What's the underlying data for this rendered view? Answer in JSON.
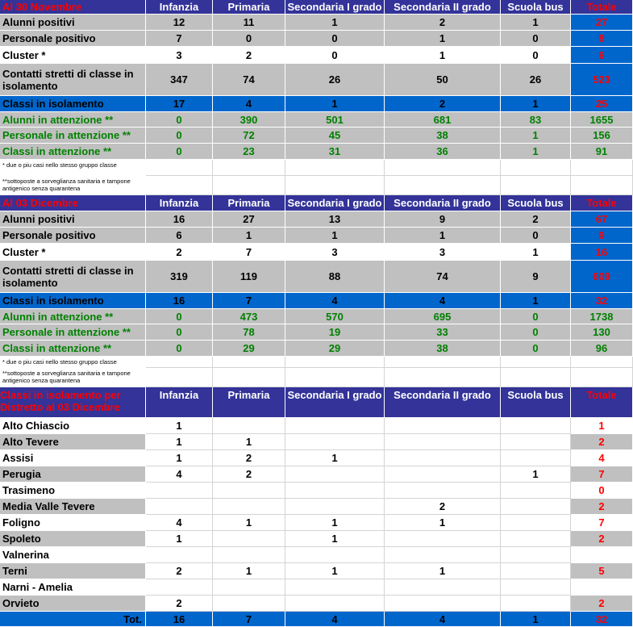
{
  "columns": [
    "Infanzia",
    "Primaria",
    "Secondaria I grado",
    "Secondaria II grado",
    "Scuola bus",
    "Totale"
  ],
  "footnote_cluster": "* due o piu casi  nello stesso gruppo classe",
  "footnote_attention": "**sottoposte a sorveglianza sanitaria e tampone antigenico senza quarantena",
  "nov": {
    "title": "Al  30 Novembre",
    "rows": [
      {
        "label": "Alunni positivi",
        "values": [
          "12",
          "11",
          "1",
          "2",
          "1"
        ],
        "total": "27"
      },
      {
        "label": "Personale positivo",
        "values": [
          "7",
          "0",
          "0",
          "1",
          "0"
        ],
        "total": "8"
      },
      {
        "label": "Cluster *",
        "values": [
          "3",
          "2",
          "0",
          "1",
          "0"
        ],
        "total": "6"
      },
      {
        "label": "Contatti stretti di classe in isolamento",
        "values": [
          "347",
          "74",
          "26",
          "50",
          "26"
        ],
        "total": "523"
      },
      {
        "label": "Classi in isolamento",
        "values": [
          "17",
          "4",
          "1",
          "2",
          "1"
        ],
        "total": "25"
      },
      {
        "label": "Alunni in attenzione  **",
        "values": [
          "0",
          "390",
          "501",
          "681",
          "83"
        ],
        "total": "1655"
      },
      {
        "label": "Personale in attenzione **",
        "values": [
          "0",
          "72",
          "45",
          "38",
          "1"
        ],
        "total": "156"
      },
      {
        "label": "Classi in attenzione **",
        "values": [
          "0",
          "23",
          "31",
          "36",
          "1"
        ],
        "total": "91"
      }
    ]
  },
  "dec": {
    "title": "Al  03 Dicembre",
    "rows": [
      {
        "label": "Alunni positivi",
        "values": [
          "16",
          "27",
          "13",
          "9",
          "2"
        ],
        "total": "67"
      },
      {
        "label": "Personale positivo",
        "values": [
          "6",
          "1",
          "1",
          "1",
          "0"
        ],
        "total": "9"
      },
      {
        "label": "Cluster *",
        "values": [
          "2",
          "7",
          "3",
          "3",
          "1"
        ],
        "total": "16"
      },
      {
        "label": "Contatti stretti di classe in isolamento",
        "values": [
          "319",
          "119",
          "88",
          "74",
          "9"
        ],
        "total": "609"
      },
      {
        "label": "Classi in isolamento",
        "values": [
          "16",
          "7",
          "4",
          "4",
          "1"
        ],
        "total": "32"
      },
      {
        "label": "Alunni in attenzione  **",
        "values": [
          "0",
          "473",
          "570",
          "695",
          "0"
        ],
        "total": "1738"
      },
      {
        "label": "Personale in attenzione **",
        "values": [
          "0",
          "78",
          "19",
          "33",
          "0"
        ],
        "total": "130"
      },
      {
        "label": "Classi in attenzione **",
        "values": [
          "0",
          "29",
          "29",
          "38",
          "0"
        ],
        "total": "96"
      }
    ]
  },
  "district": {
    "title": "Classi in isolamento per Distretto al 03 Dicembre",
    "rows": [
      {
        "label": "Alto Chiascio",
        "values": [
          "1",
          "",
          "",
          "",
          ""
        ],
        "total": "1"
      },
      {
        "label": "Alto Tevere",
        "values": [
          "1",
          "1",
          "",
          "",
          ""
        ],
        "total": "2"
      },
      {
        "label": "Assisi",
        "values": [
          "1",
          "2",
          "1",
          "",
          ""
        ],
        "total": "4"
      },
      {
        "label": "Perugia",
        "values": [
          "4",
          "2",
          "",
          "",
          "1"
        ],
        "total": "7"
      },
      {
        "label": "Trasimeno",
        "values": [
          "",
          "",
          "",
          "",
          ""
        ],
        "total": "0"
      },
      {
        "label": "Media Valle Tevere",
        "values": [
          "",
          "",
          "",
          "2",
          ""
        ],
        "total": "2"
      },
      {
        "label": "Foligno",
        "values": [
          "4",
          "1",
          "1",
          "1",
          ""
        ],
        "total": "7"
      },
      {
        "label": "Spoleto",
        "values": [
          "1",
          "",
          "1",
          "",
          ""
        ],
        "total": "2"
      },
      {
        "label": "Valnerina",
        "values": [
          "",
          "",
          "",
          "",
          ""
        ],
        "total": ""
      },
      {
        "label": "Terni",
        "values": [
          "2",
          "1",
          "1",
          "1",
          ""
        ],
        "total": "5"
      },
      {
        "label": "Narni - Amelia",
        "values": [
          "",
          "",
          "",
          "",
          ""
        ],
        "total": ""
      },
      {
        "label": "Orvieto",
        "values": [
          "2",
          "",
          "",
          "",
          ""
        ],
        "total": "2"
      }
    ],
    "total_row": {
      "label": "Tot.",
      "values": [
        "16",
        "7",
        "4",
        "4",
        "1"
      ],
      "total": "32"
    }
  }
}
